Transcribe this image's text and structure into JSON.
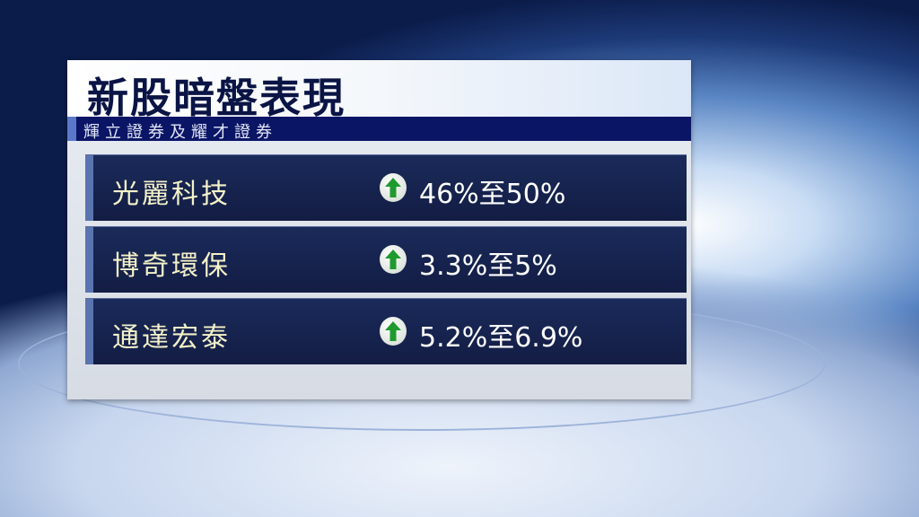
{
  "header": {
    "title": "新股暗盤表現",
    "subtitle": "輝立證券及耀才證券"
  },
  "rows": [
    {
      "name": "光麗科技",
      "direction": "up",
      "value": "46%至50%"
    },
    {
      "name": "博奇環保",
      "direction": "up",
      "value": "3.3%至5%"
    },
    {
      "name": "通達宏泰",
      "direction": "up",
      "value": "5.2%至6.9%"
    }
  ],
  "colors": {
    "navy": "#0b1566",
    "up_arrow": "#1f9a2e"
  }
}
